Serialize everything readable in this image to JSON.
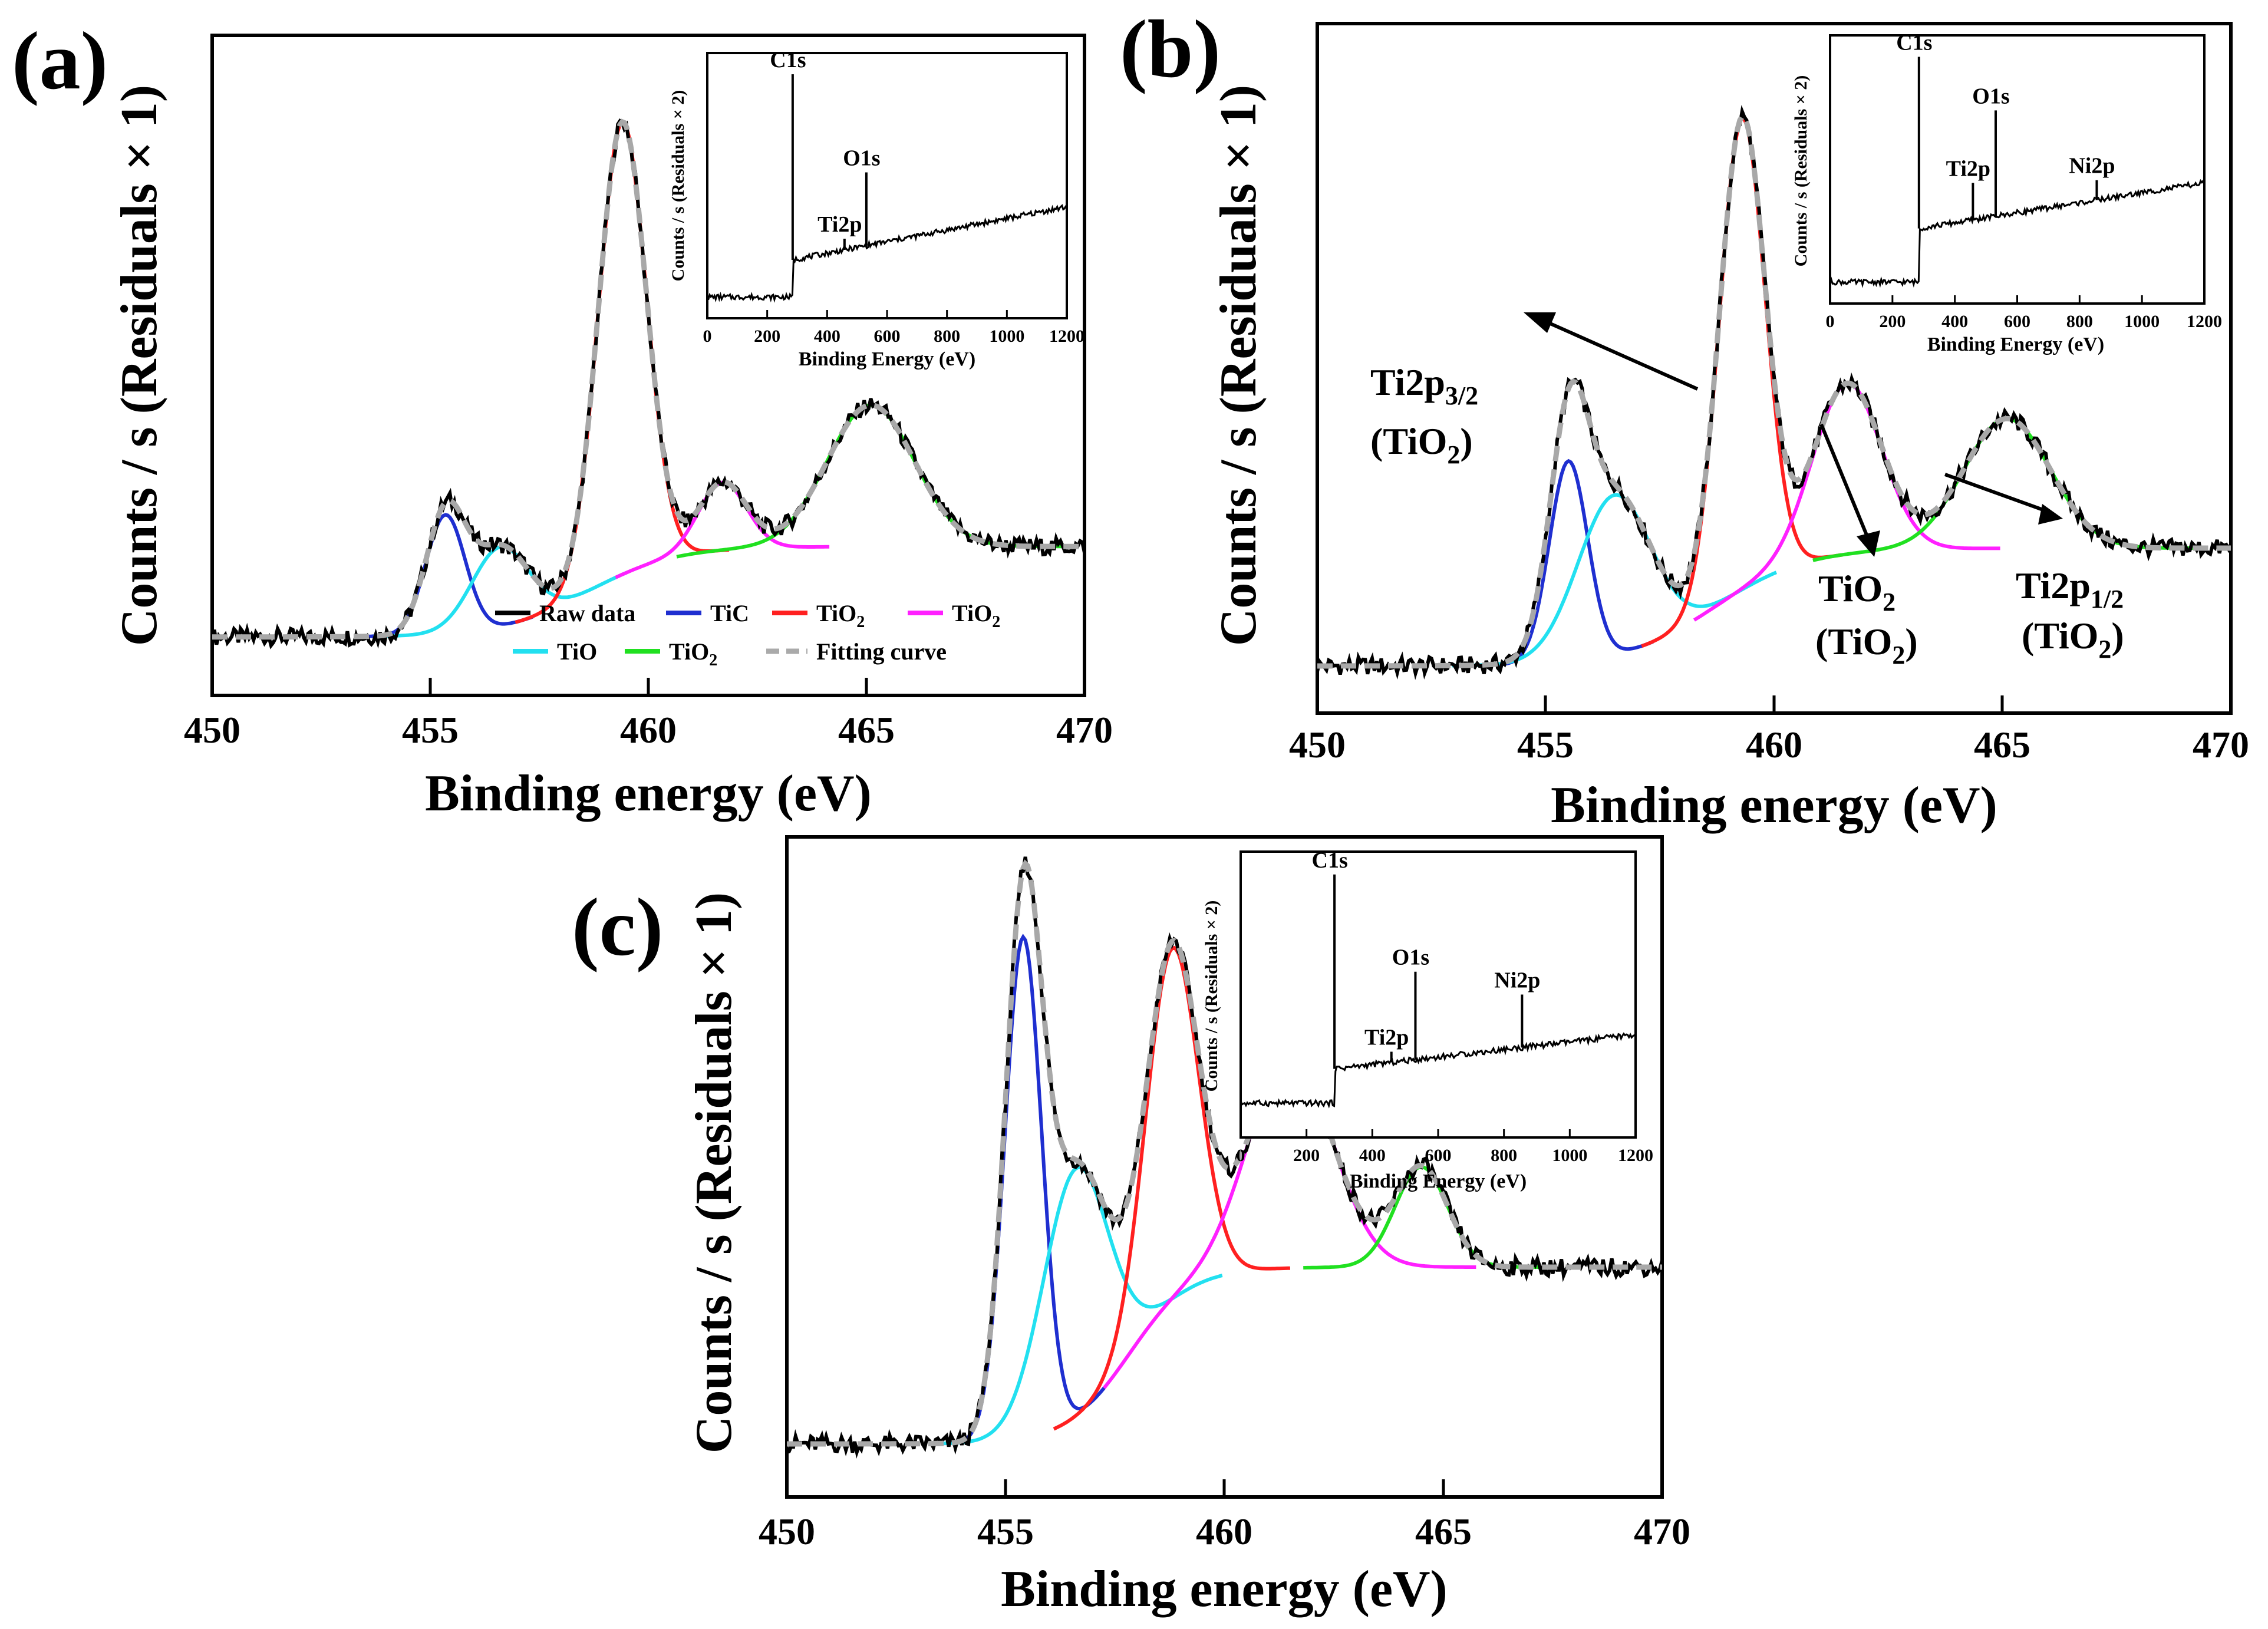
{
  "chart_data": [
    {
      "type": "line",
      "panel_label": "(a)",
      "xlabel": "Binding energy (eV)",
      "ylabel": "Counts / s (Residuals × 1)",
      "xlim": [
        450,
        470
      ],
      "x_ticks": [
        "450",
        "455",
        "460",
        "465",
        "470"
      ],
      "peaks": [
        {
          "name": "TiC",
          "center": 455.35,
          "height": 0.21,
          "width": 0.45,
          "color": "#1f2fd0"
        },
        {
          "name": "TiO",
          "center": 456.6,
          "height": 0.14,
          "width": 0.65,
          "color": "#22e0f0"
        },
        {
          "name": "TiO2",
          "center": 459.4,
          "height": 0.8,
          "width": 0.55,
          "color": "#ff2020"
        },
        {
          "name": "TiO2",
          "center": 461.7,
          "height": 0.12,
          "width": 0.55,
          "color": "#ff20ff"
        },
        {
          "name": "TiO2",
          "center": 465.1,
          "height": 0.25,
          "width": 1.0,
          "color": "#20e020"
        }
      ],
      "baseline": {
        "low": 0.02,
        "high": 0.18,
        "mid": 458.6,
        "steep": 1.0
      },
      "legend": {
        "items": [
          {
            "label": "Raw data",
            "color": "#000000",
            "dash": "none"
          },
          {
            "label": "TiC",
            "color": "#1f2fd0",
            "dash": "none"
          },
          {
            "label": "TiO2",
            "color": "#ff2020",
            "dash": "none"
          },
          {
            "label": "TiO2",
            "color": "#ff20ff",
            "dash": "none"
          },
          {
            "label": "TiO",
            "color": "#22e0f0",
            "dash": "none"
          },
          {
            "label": "TiO2",
            "color": "#20e020",
            "dash": "none"
          },
          {
            "label": "Fitting curve",
            "color": "#aaaaaa",
            "dash": "dashed"
          }
        ]
      },
      "annotations": [],
      "inset": {
        "xlabel": "Binding Energy (eV)",
        "ylabel": "Counts / s (Residuals × 2)",
        "xlim": [
          0,
          1200
        ],
        "x_ticks": [
          "0",
          "200",
          "400",
          "600",
          "800",
          "1000",
          "1200"
        ],
        "baseline": {
          "start": 0.08,
          "jump_at": 285,
          "after": 0.22,
          "slope_end": 0.42
        },
        "spikes": [
          {
            "label": "C1s",
            "x": 285,
            "height": 0.92
          },
          {
            "label": "Ti2p",
            "x": 458,
            "height": 0.3
          },
          {
            "label": "O1s",
            "x": 531,
            "height": 0.55
          }
        ]
      }
    },
    {
      "type": "line",
      "panel_label": "(b)",
      "xlabel": "Binding energy (eV)",
      "ylabel": "Counts / s (Residuals × 1)",
      "xlim": [
        450,
        470
      ],
      "x_ticks": [
        "450",
        "455",
        "460",
        "465",
        "470"
      ],
      "peaks": [
        {
          "name": "TiC",
          "center": 455.5,
          "height": 0.34,
          "width": 0.42,
          "color": "#1f2fd0"
        },
        {
          "name": "TiO",
          "center": 456.5,
          "height": 0.27,
          "width": 0.8,
          "color": "#22e0f0"
        },
        {
          "name": "TiO2",
          "center": 459.3,
          "height": 0.8,
          "width": 0.5,
          "color": "#ff2020"
        },
        {
          "name": "TiO2",
          "center": 461.6,
          "height": 0.29,
          "width": 0.75,
          "color": "#ff20ff"
        },
        {
          "name": "TiO2",
          "center": 465.1,
          "height": 0.22,
          "width": 0.95,
          "color": "#20e020"
        }
      ],
      "baseline": {
        "low": 0.0,
        "high": 0.2,
        "mid": 458.7,
        "steep": 1.0
      },
      "legend": null,
      "annotations": [
        {
          "text": "Ti2p3/2",
          "sub": "3/2",
          "sub_of": "Ti2p",
          "line2": "(TiO2)"
        },
        {
          "text": "TiO2",
          "line2": "(TiO2)"
        },
        {
          "text": "Ti2p1/2",
          "sub": "1/2",
          "sub_of": "Ti2p",
          "line2": "(TiO2)"
        }
      ],
      "inset": {
        "xlabel": "Binding Energy (eV)",
        "ylabel": "Counts / s (Residuals × 2)",
        "xlim": [
          0,
          1200
        ],
        "x_ticks": [
          "0",
          "200",
          "400",
          "600",
          "800",
          "1000",
          "1200"
        ],
        "baseline": {
          "start": 0.08,
          "jump_at": 285,
          "after": 0.28,
          "slope_end": 0.45
        },
        "spikes": [
          {
            "label": "C1s",
            "x": 285,
            "height": 0.92
          },
          {
            "label": "Ti2p",
            "x": 458,
            "height": 0.45
          },
          {
            "label": "O1s",
            "x": 531,
            "height": 0.72
          },
          {
            "label": "Ni2p",
            "x": 855,
            "height": 0.46
          }
        ]
      }
    },
    {
      "type": "line",
      "panel_label": "(c)",
      "xlabel": "Binding energy (eV)",
      "ylabel": "Counts / s (Residuals × 1)",
      "xlim": [
        450,
        470
      ],
      "x_ticks": [
        "450",
        "455",
        "460",
        "465",
        "470"
      ],
      "peaks": [
        {
          "name": "TiC",
          "center": 455.4,
          "height": 0.85,
          "width": 0.42,
          "color": "#1f2fd0"
        },
        {
          "name": "TiO",
          "center": 456.6,
          "height": 0.42,
          "width": 0.75,
          "color": "#22e0f0"
        },
        {
          "name": "TiO2",
          "center": 458.8,
          "height": 0.6,
          "width": 0.6,
          "color": "#ff2020"
        },
        {
          "name": "TiO2",
          "center": 461.5,
          "height": 0.36,
          "width": 0.95,
          "color": "#ff20ff"
        },
        {
          "name": "TiO2",
          "center": 464.5,
          "height": 0.17,
          "width": 0.6,
          "color": "#20e020"
        }
      ],
      "baseline": {
        "low": 0.0,
        "high": 0.3,
        "mid": 457.8,
        "steep": 1.4
      },
      "legend": null,
      "annotations": [],
      "inset": {
        "xlabel": "Binding Energy (eV)",
        "ylabel": "Counts / s (Residuals × 2)",
        "xlim": [
          0,
          1200
        ],
        "x_ticks": [
          "0",
          "200",
          "400",
          "600",
          "800",
          "1000",
          "1200"
        ],
        "baseline": {
          "start": 0.12,
          "jump_at": 285,
          "after": 0.24,
          "slope_end": 0.36
        },
        "spikes": [
          {
            "label": "C1s",
            "x": 285,
            "height": 0.92
          },
          {
            "label": "Ti2p",
            "x": 458,
            "height": 0.3
          },
          {
            "label": "O1s",
            "x": 531,
            "height": 0.58
          },
          {
            "label": "Ni2p",
            "x": 855,
            "height": 0.5
          }
        ]
      }
    }
  ]
}
